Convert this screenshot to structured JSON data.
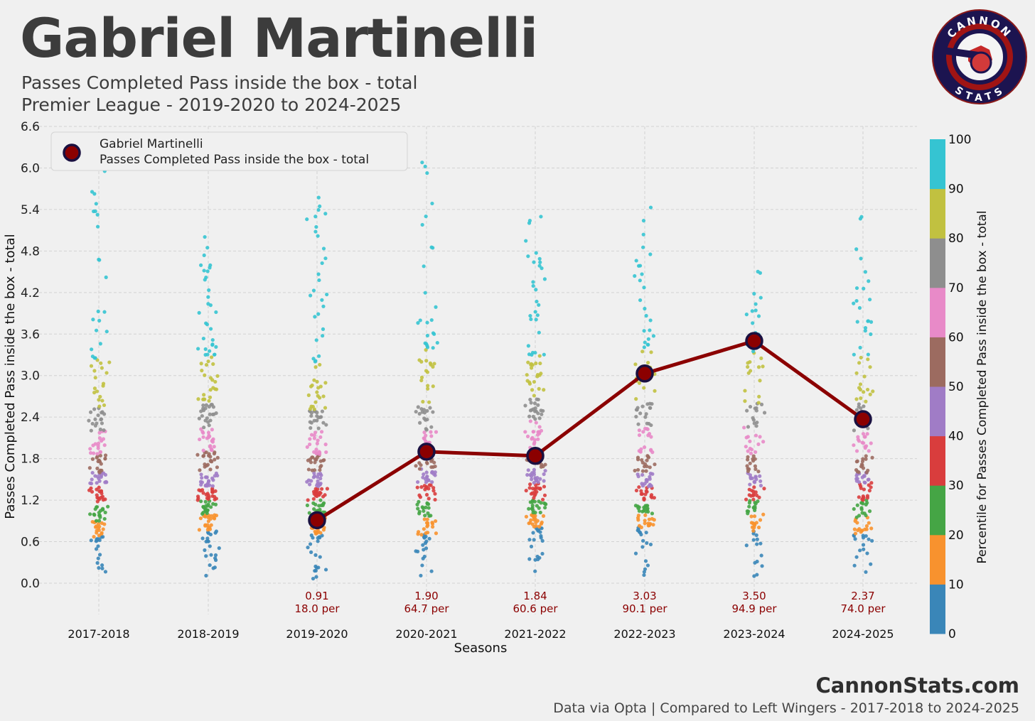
{
  "header": {
    "title": "Gabriel Martinelli",
    "subtitle_1": "Passes Completed Pass inside the box - total",
    "subtitle_2": "Premier League - 2019-2020 to 2024-2025"
  },
  "logo": {
    "top_text": "CANNON",
    "bottom_text": "STATS",
    "icon": "cannon-stats-logo-icon"
  },
  "footer": {
    "brand": "CannonStats.com",
    "credit": "Data via Opta | Compared to Left Wingers - 2017-2018 to 2024-2025"
  },
  "colors": {
    "background": "#f0f0f0",
    "player_line": "#8b0000",
    "player_marker_fill": "#8b0000",
    "player_marker_edge": "#1a1040",
    "annotation_text": "#8b0000",
    "percentile_bands": [
      "#3a86b8",
      "#f8922e",
      "#45a545",
      "#d93d3d",
      "#a07cc6",
      "#9c6b60",
      "#e88ac8",
      "#8e8e8e",
      "#c1c140",
      "#35c4d2"
    ]
  },
  "chart_data": {
    "type": "scatter",
    "title": "Passes Completed Pass inside the box - total",
    "xlabel": "Seasons",
    "ylabel": "Passes Completed Pass inside the box - total",
    "ylim": [
      -0.45,
      6.6
    ],
    "yticks": [
      0.0,
      0.6,
      1.2,
      1.8,
      2.4,
      3.0,
      3.6,
      4.2,
      4.8,
      5.4,
      6.0,
      6.6
    ],
    "ytick_labels": [
      "0.0",
      "0.6",
      "1.2",
      "1.8",
      "2.4",
      "3.0",
      "3.6",
      "4.2",
      "4.8",
      "5.4",
      "6.0",
      "6.6"
    ],
    "categories": [
      "2017-2018",
      "2018-2019",
      "2019-2020",
      "2020-2021",
      "2021-2022",
      "2022-2023",
      "2023-2024",
      "2024-2025"
    ],
    "grid": true,
    "legend": {
      "position": "top-left",
      "label_line_1": "Gabriel Martinelli",
      "label_line_2": "Passes Completed Pass inside the box - total"
    },
    "colorbar": {
      "label": "Percentile for Passes Completed Pass inside the box - total",
      "ticks": [
        "0",
        "10",
        "20",
        "30",
        "40",
        "50",
        "60",
        "70",
        "80",
        "90",
        "100"
      ]
    },
    "percentile_boundaries": [
      [
        0.0,
        0.67,
        0.9,
        1.15,
        1.4,
        1.6,
        1.85,
        2.2,
        2.55,
        3.25,
        6.5
      ],
      [
        0.1,
        0.75,
        1.0,
        1.2,
        1.4,
        1.6,
        1.9,
        2.25,
        2.6,
        3.3,
        5.1
      ],
      [
        0.05,
        0.7,
        0.95,
        1.2,
        1.4,
        1.6,
        1.85,
        2.2,
        2.5,
        3.2,
        5.9
      ],
      [
        0.0,
        0.7,
        0.95,
        1.2,
        1.45,
        1.65,
        1.9,
        2.2,
        2.55,
        3.4,
        6.1
      ],
      [
        0.1,
        0.8,
        1.0,
        1.2,
        1.45,
        1.65,
        1.9,
        2.35,
        2.7,
        3.3,
        5.5
      ],
      [
        0.1,
        0.8,
        1.0,
        1.2,
        1.4,
        1.6,
        1.85,
        2.25,
        2.6,
        3.4,
        5.45
      ],
      [
        0.05,
        0.75,
        1.0,
        1.2,
        1.4,
        1.6,
        1.85,
        2.25,
        2.6,
        3.35,
        4.6
      ],
      [
        0.15,
        0.7,
        0.95,
        1.2,
        1.45,
        1.6,
        1.9,
        2.2,
        2.6,
        3.3,
        5.45
      ]
    ],
    "distribution_points_per_band": [
      18,
      22,
      20,
      17,
      21,
      17,
      14,
      16
    ],
    "series": [
      {
        "name": "Gabriel Martinelli",
        "x": [
          "2019-2020",
          "2020-2021",
          "2021-2022",
          "2022-2023",
          "2023-2024",
          "2024-2025"
        ],
        "values": [
          0.91,
          1.9,
          1.84,
          3.03,
          3.5,
          2.37
        ],
        "percentiles": [
          18.0,
          64.7,
          60.6,
          90.1,
          94.9,
          74.0
        ],
        "value_labels": [
          "0.91",
          "1.90",
          "1.84",
          "3.03",
          "3.50",
          "2.37"
        ],
        "percentile_labels": [
          "18.0 per",
          "64.7 per",
          "60.6 per",
          "90.1 per",
          "94.9 per",
          "74.0 per"
        ]
      }
    ]
  }
}
